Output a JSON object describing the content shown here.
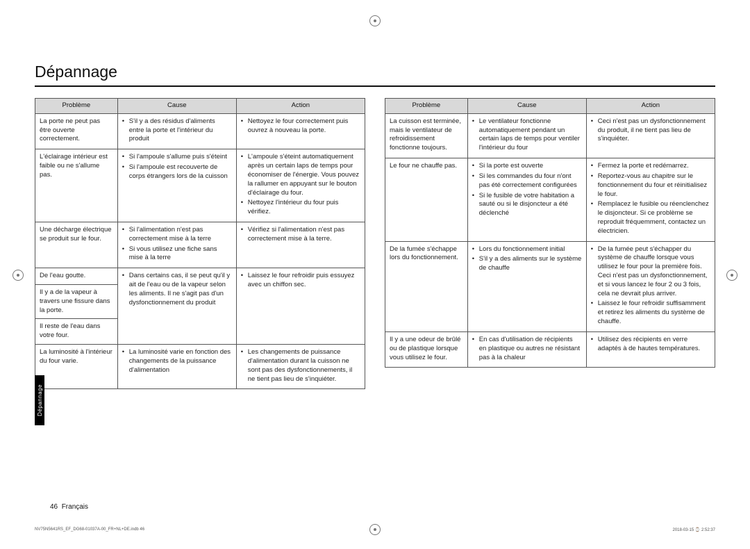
{
  "title": "Dépannage",
  "headers": {
    "problem": "Problème",
    "cause": "Cause",
    "action": "Action"
  },
  "side_tab": "Dépannage",
  "page_number": "46",
  "language_label": "Français",
  "footer_left": "NV75N5641RS_EF_DG68-01037A-00_FR+NL+DE.indb   46",
  "footer_right": "2018-03-15   ⌚ 2:52:37",
  "left_table": [
    {
      "problem": "La porte ne peut pas être ouverte correctement.",
      "causes": [
        "S'il y a des résidus d'aliments entre la porte et l'intérieur du produit"
      ],
      "actions": [
        "Nettoyez le four correctement puis ouvrez à nouveau la porte."
      ]
    },
    {
      "problem": "L'éclairage intérieur est faible ou ne s'allume pas.",
      "causes": [
        "Si l'ampoule s'allume puis s'éteint",
        "Si l'ampoule est recouverte de corps étrangers lors de la cuisson"
      ],
      "actions": [
        "L'ampoule s'éteint automatiquement après un certain laps de temps pour économiser de l'énergie. Vous pouvez la rallumer en appuyant sur le bouton d'éclairage du four.",
        "Nettoyez l'intérieur du four puis vérifiez."
      ]
    },
    {
      "problem": "Une décharge électrique se produit sur le four.",
      "causes": [
        "Si l'alimentation n'est pas correctement mise à la terre",
        "Si vous utilisez une fiche sans mise à la terre"
      ],
      "actions": [
        "Vérifiez si l'alimentation n'est pas correctement mise à la terre."
      ]
    },
    {
      "problem_group": [
        "De l'eau goutte.",
        "Il y a de la vapeur à travers une fissure dans la porte.",
        "Il reste de l'eau dans votre four."
      ],
      "causes": [
        "Dans certains cas, il se peut qu'il y ait de l'eau ou de la vapeur selon les aliments. Il ne s'agit pas d'un dysfonctionnement du produit"
      ],
      "actions": [
        "Laissez le four refroidir puis essuyez avec un chiffon sec."
      ]
    },
    {
      "problem": "La luminosité à l'intérieur du four varie.",
      "causes": [
        "La luminosité varie en fonction des changements de la puissance d'alimentation"
      ],
      "actions": [
        "Les changements de puissance d'alimentation durant la cuisson ne sont pas des dysfonctionnements, il ne tient pas lieu de s'inquiéter."
      ]
    }
  ],
  "right_table": [
    {
      "problem": "La cuisson est terminée, mais le ventilateur de refroidissement fonctionne toujours.",
      "causes": [
        "Le ventilateur fonctionne automatiquement pendant un certain laps de temps pour ventiler l'intérieur du four"
      ],
      "actions": [
        "Ceci n'est pas un dysfonctionnement du produit, il ne tient pas lieu de s'inquiéter."
      ]
    },
    {
      "problem": "Le four ne chauffe pas.",
      "causes": [
        "Si la porte est ouverte",
        "Si les commandes du four n'ont pas été correctement configurées",
        "Si le fusible de votre habitation a sauté ou si le disjoncteur a été déclenché"
      ],
      "actions": [
        "Fermez la porte et redémarrez.",
        "Reportez-vous au chapitre sur le fonctionnement du four et réinitialisez le four.",
        "Remplacez le fusible ou réenclenchez le disjoncteur. Si ce problème se reproduit fréquemment, contactez un électricien."
      ]
    },
    {
      "problem": "De la fumée s'échappe lors du fonctionnement.",
      "causes": [
        "Lors du fonctionnement initial",
        "S'il y a des aliments sur le système de chauffe"
      ],
      "actions": [
        "De la fumée peut s'échapper du système de chauffe lorsque vous utilisez le four pour la première fois. Ceci n'est pas un dysfonctionnement, et si vous lancez le four 2 ou 3 fois, cela ne devrait plus arriver.",
        "Laissez le four refroidir suffisamment et retirez les aliments du système de chauffe."
      ]
    },
    {
      "problem": "Il y a une odeur de brûlé ou de plastique lorsque vous utilisez le four.",
      "causes": [
        "En cas d'utilisation de récipients en plastique ou autres ne résistant pas à la chaleur"
      ],
      "actions": [
        "Utilisez des récipients en verre adaptés à de hautes températures."
      ]
    }
  ]
}
